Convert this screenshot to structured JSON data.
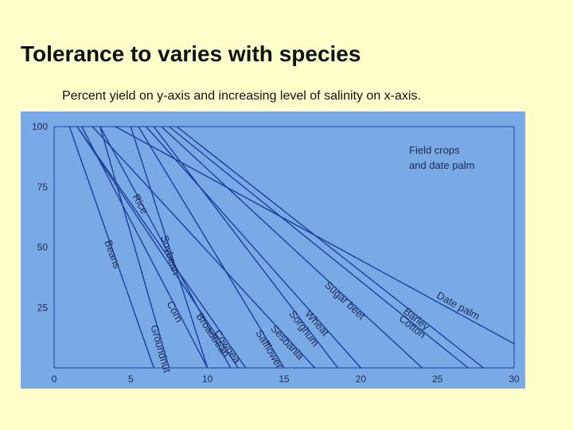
{
  "slide": {
    "title": "Tolerance to varies with species",
    "subtitle": "Percent yield on y-axis and increasing level of salinity on x-axis."
  },
  "colors": {
    "background": "#ffffcc",
    "plot_background": "#7aaae6",
    "line": "#1b3f9a",
    "text": "#1c2a55"
  },
  "chart_data": {
    "type": "line",
    "title": "",
    "xlabel": "",
    "ylabel": "",
    "xlim": [
      0,
      30
    ],
    "ylim": [
      0,
      100
    ],
    "xticks": [
      0,
      5,
      10,
      15,
      20,
      25,
      30
    ],
    "yticks": [
      25,
      50,
      75,
      100
    ],
    "grid": false,
    "legend": "none",
    "annotation": [
      "Field crops",
      "and date palm"
    ],
    "series": [
      {
        "name": "Rice",
        "x": [
          3.0,
          11.5
        ],
        "y": [
          100,
          0
        ]
      },
      {
        "name": "Beans",
        "x": [
          1.0,
          6.5
        ],
        "y": [
          100,
          0
        ]
      },
      {
        "name": "Soybean",
        "x": [
          5.0,
          10.0
        ],
        "y": [
          100,
          0
        ]
      },
      {
        "name": "Corn",
        "x": [
          1.8,
          10.0
        ],
        "y": [
          100,
          0
        ]
      },
      {
        "name": "Groundnut",
        "x": [
          3.0,
          7.5
        ],
        "y": [
          100,
          0
        ]
      },
      {
        "name": "Cowpea",
        "x": [
          1.5,
          12.5
        ],
        "y": [
          100,
          0
        ]
      },
      {
        "name": "Broadbean",
        "x": [
          1.5,
          12.0
        ],
        "y": [
          100,
          0
        ]
      },
      {
        "name": "Safflower",
        "x": [
          5.5,
          15.0
        ],
        "y": [
          100,
          0
        ]
      },
      {
        "name": "Sesbania",
        "x": [
          2.5,
          17.0
        ],
        "y": [
          100,
          0
        ]
      },
      {
        "name": "Sorghum",
        "x": [
          6.5,
          18.5
        ],
        "y": [
          100,
          0
        ]
      },
      {
        "name": "Wheat",
        "x": [
          6.0,
          20.0
        ],
        "y": [
          100,
          0
        ]
      },
      {
        "name": "Sugar beet",
        "x": [
          7.0,
          24.0
        ],
        "y": [
          100,
          0
        ]
      },
      {
        "name": "Cotton",
        "x": [
          7.5,
          27.0
        ],
        "y": [
          100,
          0
        ]
      },
      {
        "name": "Barley",
        "x": [
          8.0,
          28.0
        ],
        "y": [
          100,
          0
        ]
      },
      {
        "name": "Date palm",
        "x": [
          4.0,
          30.0
        ],
        "y": [
          100,
          10
        ]
      }
    ]
  }
}
